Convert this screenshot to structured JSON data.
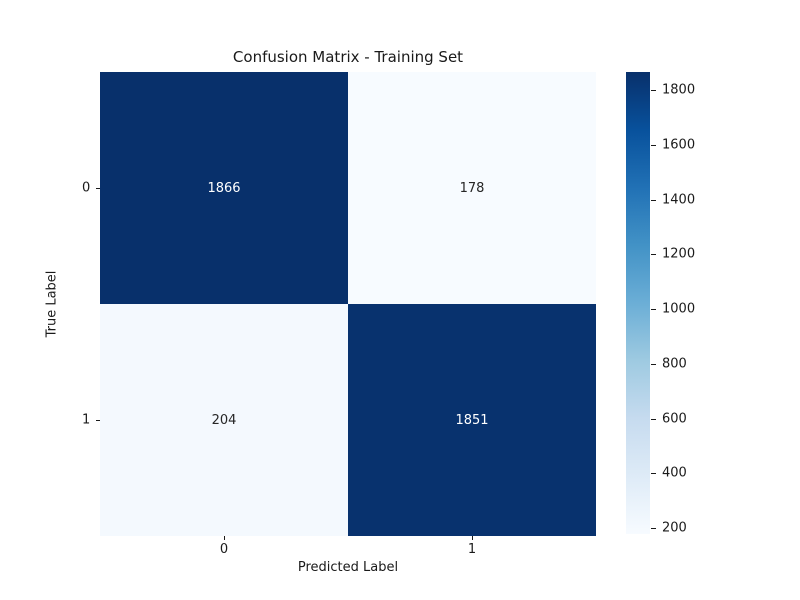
{
  "chart_data": {
    "type": "heatmap",
    "title": "Confusion Matrix - Training Set",
    "xlabel": "Predicted Label",
    "ylabel": "True Label",
    "x_tick_labels": [
      "0",
      "1"
    ],
    "y_tick_labels": [
      "0",
      "1"
    ],
    "matrix": [
      [
        1866,
        178
      ],
      [
        204,
        1851
      ]
    ],
    "cell_colors": [
      [
        "#08306b",
        "#f7fbff"
      ],
      [
        "#f4f9fe",
        "#08326e"
      ]
    ],
    "cell_text_colors": [
      [
        "#ffffff",
        "#262626"
      ],
      [
        "#262626",
        "#ffffff"
      ]
    ],
    "vmin": 178,
    "vmax": 1866,
    "colormap": "Blues",
    "colormap_stops": [
      "#f7fbff",
      "#deebf7",
      "#c6dbef",
      "#9ecae1",
      "#6baed6",
      "#4292c6",
      "#2171b5",
      "#08519c",
      "#08306b"
    ],
    "colorbar_ticks": [
      200,
      400,
      600,
      800,
      1000,
      1200,
      1400,
      1600,
      1800
    ],
    "legend_position": "right-colorbar",
    "grid": false,
    "background_color": "#ffffff",
    "text_color": "#1a1a1a"
  }
}
